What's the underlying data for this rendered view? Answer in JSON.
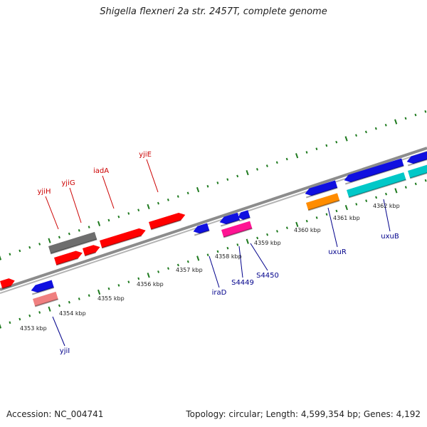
{
  "title": "Shigella flexneri 2a str. 2457T, complete genome",
  "footer": {
    "accession": "Accession: NC_004741",
    "summary": "Topology: circular; Length: 4,599,354 bp; Genes: 4,192"
  },
  "colors": {
    "backbone": "#8c8c8c",
    "tick": "#1e7a1e",
    "label_forward": "#cc0000",
    "label_reverse": "#00008b",
    "gene_red": "#ff0000",
    "gene_gray": "#6e6e6e",
    "gene_blue": "#1010e0",
    "gene_magenta": "#ff1493",
    "gene_orange": "#ff8c00",
    "gene_cyan": "#00c8c8",
    "gene_pink": "#f08080"
  },
  "axis": {
    "unit": "kbp",
    "labels": [
      "4353 kbp",
      "4354 kbp",
      "4355 kbp",
      "4356 kbp",
      "4357 kbp",
      "4358 kbp",
      "4359 kbp",
      "4360 kbp",
      "4361 kbp",
      "4362 kbp"
    ]
  },
  "gene_labels": {
    "forward": [
      "yjiH",
      "yjiG",
      "iadA",
      "yjiE"
    ],
    "reverse": [
      "yjiI",
      "iraD",
      "S4449",
      "S4450",
      "uxuR",
      "uxuB"
    ]
  }
}
